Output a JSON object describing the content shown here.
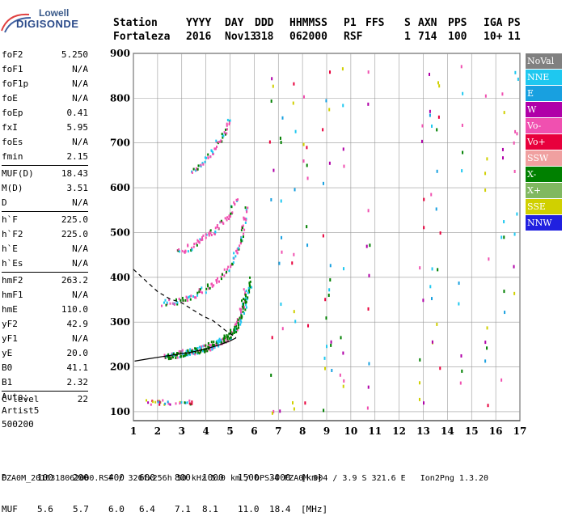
{
  "logo": {
    "line1": "Lowell",
    "line2": "DIGISONDE"
  },
  "header": {
    "row1": [
      "Station",
      "YYYY",
      "DAY",
      "DDD",
      "HHMMSS",
      "P1",
      "FFS",
      "S",
      "AXN",
      "PPS",
      "IGA",
      "PS"
    ],
    "row2": [
      "Fortaleza",
      "2016",
      "Nov13",
      "318",
      "062000",
      "RSF",
      "1",
      "714",
      "100",
      "10+",
      "11"
    ]
  },
  "params": [
    {
      "label": "foF2",
      "value": "5.250"
    },
    {
      "label": "foF1",
      "value": "N/A"
    },
    {
      "label": "foF1p",
      "value": "N/A"
    },
    {
      "label": "foE",
      "value": "N/A"
    },
    {
      "label": "foEp",
      "value": "0.41"
    },
    {
      "label": "fxI",
      "value": "5.95"
    },
    {
      "label": "foEs",
      "value": "N/A"
    },
    {
      "label": "fmin",
      "value": "2.15"
    },
    {
      "sep": true
    },
    {
      "label": "MUF(D)",
      "value": "18.43"
    },
    {
      "label": "M(D)",
      "value": "3.51"
    },
    {
      "label": "D",
      "value": "N/A"
    },
    {
      "sep": true
    },
    {
      "label": "h`F",
      "value": "225.0"
    },
    {
      "label": "h`F2",
      "value": "225.0"
    },
    {
      "label": "h`E",
      "value": "N/A"
    },
    {
      "label": "h`Es",
      "value": "N/A"
    },
    {
      "sep": true
    },
    {
      "label": "hmF2",
      "value": "263.2"
    },
    {
      "label": "hmF1",
      "value": "N/A"
    },
    {
      "label": "hmE",
      "value": "110.0"
    },
    {
      "label": "yF2",
      "value": "42.9"
    },
    {
      "label": "yF1",
      "value": "N/A"
    },
    {
      "label": "yE",
      "value": "20.0"
    },
    {
      "label": "B0",
      "value": "41.1"
    },
    {
      "label": "B1",
      "value": "2.32"
    },
    {
      "sep": true
    },
    {
      "label": "C-level",
      "value": "22"
    }
  ],
  "auto": {
    "line1": "Auto:",
    "line2": "Artist5",
    "line3": "500200"
  },
  "chart_data": {
    "type": "scatter",
    "title": "",
    "xlabel": "",
    "ylabel": "",
    "xlim": [
      1,
      17
    ],
    "ylim": [
      80,
      900
    ],
    "x_ticks": [
      1,
      2,
      3,
      4,
      5,
      6,
      7,
      8,
      9,
      10,
      11,
      12,
      13,
      14,
      15,
      16,
      17
    ],
    "y_ticks": [
      100,
      200,
      300,
      400,
      500,
      600,
      700,
      800,
      900
    ],
    "grid": true,
    "legend_position": "right",
    "legend": [
      {
        "name": "NoVal",
        "color": "#808080"
      },
      {
        "name": "NNE",
        "color": "#1ec8f0"
      },
      {
        "name": "E",
        "color": "#18a0e0"
      },
      {
        "name": "W",
        "color": "#b000a8"
      },
      {
        "name": "Vo-",
        "color": "#f050b0"
      },
      {
        "name": "Vo+",
        "color": "#e8003c"
      },
      {
        "name": "SSW",
        "color": "#f0a0a0"
      },
      {
        "name": "X-",
        "color": "#008000"
      },
      {
        "name": "X+",
        "color": "#80b860"
      },
      {
        "name": "SSE",
        "color": "#d0d000"
      },
      {
        "name": "NNW",
        "color": "#2020e0"
      }
    ],
    "profile_curve": [
      [
        1.05,
        213
      ],
      [
        1.6,
        218
      ],
      [
        2.2,
        223
      ],
      [
        2.8,
        228
      ],
      [
        3.4,
        233
      ],
      [
        4.0,
        240
      ],
      [
        4.6,
        250
      ],
      [
        5.0,
        258
      ],
      [
        5.25,
        265
      ]
    ],
    "profile_dashed": [
      [
        1.0,
        418
      ],
      [
        1.5,
        393
      ],
      [
        2.0,
        368
      ],
      [
        2.5,
        352
      ],
      [
        3.0,
        343
      ],
      [
        3.5,
        326
      ],
      [
        3.9,
        313
      ],
      [
        4.3,
        303
      ],
      [
        4.8,
        282
      ],
      [
        5.25,
        265
      ]
    ],
    "traces": [
      {
        "name": "Vo-",
        "points": [
          [
            2.2,
            226
          ],
          [
            2.6,
            228
          ],
          [
            3.0,
            232
          ],
          [
            3.4,
            236
          ],
          [
            3.8,
            242
          ],
          [
            4.2,
            248
          ],
          [
            4.6,
            258
          ],
          [
            5.0,
            270
          ],
          [
            5.3,
            300
          ],
          [
            5.5,
            340
          ],
          [
            5.6,
            380
          ]
        ]
      },
      {
        "name": "X-",
        "points": [
          [
            2.4,
            224
          ],
          [
            2.8,
            228
          ],
          [
            3.2,
            232
          ],
          [
            3.6,
            238
          ],
          [
            4.0,
            246
          ],
          [
            4.4,
            256
          ],
          [
            4.8,
            268
          ],
          [
            5.2,
            285
          ],
          [
            5.5,
            320
          ],
          [
            5.7,
            360
          ],
          [
            5.85,
            400
          ]
        ]
      },
      {
        "name": "Vo-",
        "points": [
          [
            2.2,
            345
          ],
          [
            2.8,
            348
          ],
          [
            3.4,
            360
          ],
          [
            4.0,
            378
          ],
          [
            4.6,
            400
          ],
          [
            5.1,
            440
          ],
          [
            5.4,
            480
          ],
          [
            5.55,
            520
          ],
          [
            5.65,
            560
          ]
        ]
      },
      {
        "name": "Vo-",
        "points": [
          [
            2.8,
            460
          ],
          [
            3.4,
            470
          ],
          [
            3.9,
            490
          ],
          [
            4.4,
            510
          ],
          [
            4.9,
            540
          ],
          [
            5.3,
            580
          ]
        ]
      },
      {
        "name": "Vo-",
        "points": [
          [
            3.4,
            640
          ],
          [
            3.9,
            660
          ],
          [
            4.3,
            690
          ],
          [
            4.7,
            720
          ],
          [
            5.0,
            760
          ]
        ]
      }
    ]
  },
  "footer": {
    "d_row": [
      "D",
      "100",
      "200",
      "400",
      "600",
      "800",
      "1000",
      "1500",
      "3000",
      "[km]"
    ],
    "muf_row": [
      "MUF",
      "5.6",
      "5.7",
      "6.0",
      "6.4",
      "7.1",
      "8.1",
      "11.0",
      "18.4",
      "[MHz]"
    ],
    "line3": "FZA0M_2016318062000.RSF / 320fx256h 50 kHz 5.0 km / DPS-4 FZA0M 904 / 3.9 S 321.6 E   Ion2Png 1.3.20"
  }
}
